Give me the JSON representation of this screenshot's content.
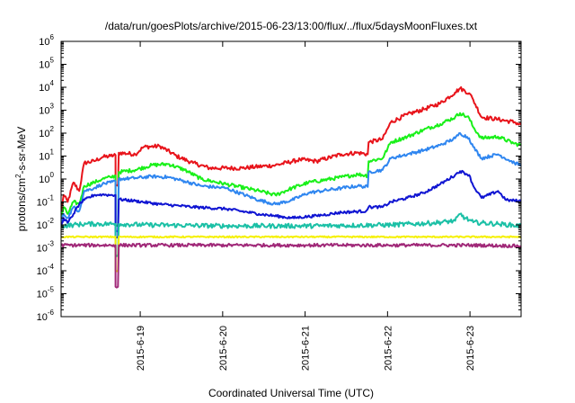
{
  "chart_data": {
    "type": "line",
    "title": "/data/run/goesPlots/archive/2015-06-23/13:00/flux/../flux/5daysMoonFluxes.txt",
    "xlabel": "Coordinated Universal Time (UTC)",
    "ylabel": "protons/cm²-s-sr-MeV",
    "yscale": "log",
    "ylim": [
      1e-06,
      1000000.0
    ],
    "xlim": [
      0,
      5.58
    ],
    "xticks": [
      {
        "x": 0.96,
        "label": "2015-6-19"
      },
      {
        "x": 1.96,
        "label": "2015-6-20"
      },
      {
        "x": 2.96,
        "label": "2015-6-21"
      },
      {
        "x": 3.96,
        "label": "2015-6-22"
      },
      {
        "x": 4.96,
        "label": "2015-6-23"
      }
    ],
    "yticks": [
      {
        "exp": -6,
        "label": "10-6"
      },
      {
        "exp": -5,
        "label": "10-5"
      },
      {
        "exp": -4,
        "label": "10-4"
      },
      {
        "exp": -3,
        "label": "10-3"
      },
      {
        "exp": -2,
        "label": "10-2"
      },
      {
        "exp": -1,
        "label": "10-1"
      },
      {
        "exp": 0,
        "label": "100"
      },
      {
        "exp": 1,
        "label": "101"
      },
      {
        "exp": 2,
        "label": "102"
      },
      {
        "exp": 3,
        "label": "103"
      },
      {
        "exp": 4,
        "label": "104"
      },
      {
        "exp": 5,
        "label": "105"
      },
      {
        "exp": 6,
        "label": "106"
      }
    ],
    "grid": false,
    "legend": "none",
    "series": [
      {
        "color": "#e8141b",
        "noise": 0.09,
        "points": [
          [
            0,
            0.04
          ],
          [
            0.03,
            0.2
          ],
          [
            0.08,
            0.1
          ],
          [
            0.15,
            0.7
          ],
          [
            0.22,
            0.3
          ],
          [
            0.28,
            5
          ],
          [
            0.4,
            6
          ],
          [
            0.5,
            9
          ],
          [
            0.6,
            10
          ],
          [
            0.66,
            11
          ],
          [
            0.66,
            0.5
          ],
          [
            0.69,
            0.5
          ],
          [
            0.7,
            14
          ],
          [
            0.9,
            12
          ],
          [
            1.0,
            25
          ],
          [
            1.2,
            27
          ],
          [
            1.4,
            10
          ],
          [
            1.6,
            5
          ],
          [
            1.8,
            3
          ],
          [
            2.2,
            3
          ],
          [
            2.6,
            4
          ],
          [
            2.9,
            7
          ],
          [
            3.1,
            6
          ],
          [
            3.4,
            12
          ],
          [
            3.6,
            14
          ],
          [
            3.72,
            12
          ],
          [
            3.73,
            40
          ],
          [
            3.9,
            55
          ],
          [
            4.0,
            300
          ],
          [
            4.2,
            650
          ],
          [
            4.4,
            1100
          ],
          [
            4.6,
            2000
          ],
          [
            4.78,
            6000
          ],
          [
            4.84,
            9000
          ],
          [
            4.95,
            5500
          ],
          [
            5.0,
            2800
          ],
          [
            5.1,
            500
          ],
          [
            5.3,
            400
          ],
          [
            5.5,
            300
          ],
          [
            5.58,
            230
          ]
        ]
      },
      {
        "color": "#19f019",
        "noise": 0.08,
        "points": [
          [
            0,
            0.02
          ],
          [
            0.03,
            0.06
          ],
          [
            0.08,
            0.03
          ],
          [
            0.15,
            0.1
          ],
          [
            0.22,
            0.08
          ],
          [
            0.28,
            0.5
          ],
          [
            0.4,
            0.7
          ],
          [
            0.5,
            1.0
          ],
          [
            0.6,
            1.2
          ],
          [
            0.66,
            1.4
          ],
          [
            0.66,
            0.01
          ],
          [
            0.69,
            0.01
          ],
          [
            0.7,
            2.0
          ],
          [
            0.9,
            2.5
          ],
          [
            1.1,
            4
          ],
          [
            1.3,
            4.5
          ],
          [
            1.5,
            2.5
          ],
          [
            1.7,
            1.0
          ],
          [
            2.0,
            0.6
          ],
          [
            2.4,
            0.3
          ],
          [
            2.6,
            0.2
          ],
          [
            2.8,
            0.4
          ],
          [
            3.0,
            0.7
          ],
          [
            3.4,
            1.2
          ],
          [
            3.6,
            1.6
          ],
          [
            3.72,
            1.4
          ],
          [
            3.73,
            6
          ],
          [
            3.9,
            8
          ],
          [
            4.0,
            40
          ],
          [
            4.2,
            70
          ],
          [
            4.4,
            140
          ],
          [
            4.6,
            250
          ],
          [
            4.78,
            500
          ],
          [
            4.84,
            750
          ],
          [
            4.95,
            450
          ],
          [
            5.0,
            180
          ],
          [
            5.1,
            60
          ],
          [
            5.3,
            70
          ],
          [
            5.5,
            35
          ],
          [
            5.58,
            30
          ]
        ]
      },
      {
        "color": "#2f86f0",
        "noise": 0.07,
        "points": [
          [
            0,
            0.012
          ],
          [
            0.03,
            0.03
          ],
          [
            0.08,
            0.02
          ],
          [
            0.15,
            0.06
          ],
          [
            0.22,
            0.04
          ],
          [
            0.28,
            0.3
          ],
          [
            0.4,
            0.4
          ],
          [
            0.5,
            0.6
          ],
          [
            0.6,
            0.7
          ],
          [
            0.66,
            0.8
          ],
          [
            0.66,
            0.005
          ],
          [
            0.69,
            0.005
          ],
          [
            0.7,
            1.0
          ],
          [
            0.9,
            1.1
          ],
          [
            1.1,
            1.3
          ],
          [
            1.3,
            1.2
          ],
          [
            1.5,
            0.8
          ],
          [
            1.7,
            0.5
          ],
          [
            2.0,
            0.4
          ],
          [
            2.4,
            0.12
          ],
          [
            2.6,
            0.08
          ],
          [
            2.8,
            0.12
          ],
          [
            3.0,
            0.25
          ],
          [
            3.4,
            0.4
          ],
          [
            3.6,
            0.5
          ],
          [
            3.72,
            0.45
          ],
          [
            3.73,
            2
          ],
          [
            3.9,
            2.5
          ],
          [
            4.0,
            8
          ],
          [
            4.2,
            12
          ],
          [
            4.4,
            18
          ],
          [
            4.6,
            30
          ],
          [
            4.78,
            60
          ],
          [
            4.84,
            100
          ],
          [
            4.95,
            60
          ],
          [
            5.0,
            25
          ],
          [
            5.1,
            8
          ],
          [
            5.3,
            12
          ],
          [
            5.5,
            5
          ],
          [
            5.58,
            4
          ]
        ]
      },
      {
        "color": "#0f14d2",
        "noise": 0.06,
        "points": [
          [
            0,
            0.008
          ],
          [
            0.03,
            0.02
          ],
          [
            0.08,
            0.012
          ],
          [
            0.15,
            0.03
          ],
          [
            0.22,
            0.08
          ],
          [
            0.28,
            0.12
          ],
          [
            0.4,
            0.2
          ],
          [
            0.5,
            0.21
          ],
          [
            0.6,
            0.2
          ],
          [
            0.66,
            0.2
          ],
          [
            0.66,
            0.003
          ],
          [
            0.69,
            0.003
          ],
          [
            0.7,
            0.13
          ],
          [
            0.9,
            0.11
          ],
          [
            1.2,
            0.08
          ],
          [
            1.6,
            0.06
          ],
          [
            2.0,
            0.05
          ],
          [
            2.4,
            0.03
          ],
          [
            2.8,
            0.02
          ],
          [
            3.1,
            0.025
          ],
          [
            3.4,
            0.035
          ],
          [
            3.7,
            0.04
          ],
          [
            3.73,
            0.06
          ],
          [
            3.9,
            0.06
          ],
          [
            4.0,
            0.1
          ],
          [
            4.2,
            0.15
          ],
          [
            4.4,
            0.25
          ],
          [
            4.6,
            0.6
          ],
          [
            4.78,
            1.5
          ],
          [
            4.84,
            2.2
          ],
          [
            4.95,
            1.5
          ],
          [
            5.0,
            0.5
          ],
          [
            5.1,
            0.15
          ],
          [
            5.3,
            0.3
          ],
          [
            5.4,
            0.12
          ],
          [
            5.58,
            0.11
          ]
        ]
      },
      {
        "color": "#1bc0a6",
        "noise": 0.1,
        "points": [
          [
            0,
            0.009
          ],
          [
            0.15,
            0.01
          ],
          [
            0.3,
            0.011
          ],
          [
            0.66,
            0.011
          ],
          [
            0.66,
            0.0005
          ],
          [
            0.69,
            0.0005
          ],
          [
            0.7,
            0.011
          ],
          [
            1.0,
            0.01
          ],
          [
            2.0,
            0.009
          ],
          [
            3.0,
            0.009
          ],
          [
            4.0,
            0.01
          ],
          [
            4.5,
            0.012
          ],
          [
            4.78,
            0.015
          ],
          [
            4.84,
            0.03
          ],
          [
            4.9,
            0.02
          ],
          [
            5.0,
            0.013
          ],
          [
            5.3,
            0.011
          ],
          [
            5.58,
            0.009
          ]
        ]
      },
      {
        "color": "#f5f000",
        "noise": 0.03,
        "points": [
          [
            0,
            0.003
          ],
          [
            0.66,
            0.003
          ],
          [
            0.66,
            0.0001
          ],
          [
            0.69,
            0.0001
          ],
          [
            0.7,
            0.003
          ],
          [
            5.58,
            0.003
          ]
        ]
      },
      {
        "color": "#a02878",
        "noise": 0.07,
        "points": [
          [
            0,
            0.0013
          ],
          [
            0.66,
            0.0013
          ],
          [
            0.66,
            2e-05
          ],
          [
            0.69,
            2e-05
          ],
          [
            0.7,
            0.0013
          ],
          [
            2.0,
            0.0013
          ],
          [
            3.0,
            0.0013
          ],
          [
            4.0,
            0.0013
          ],
          [
            5.0,
            0.0013
          ],
          [
            5.58,
            0.0012
          ]
        ]
      }
    ]
  }
}
